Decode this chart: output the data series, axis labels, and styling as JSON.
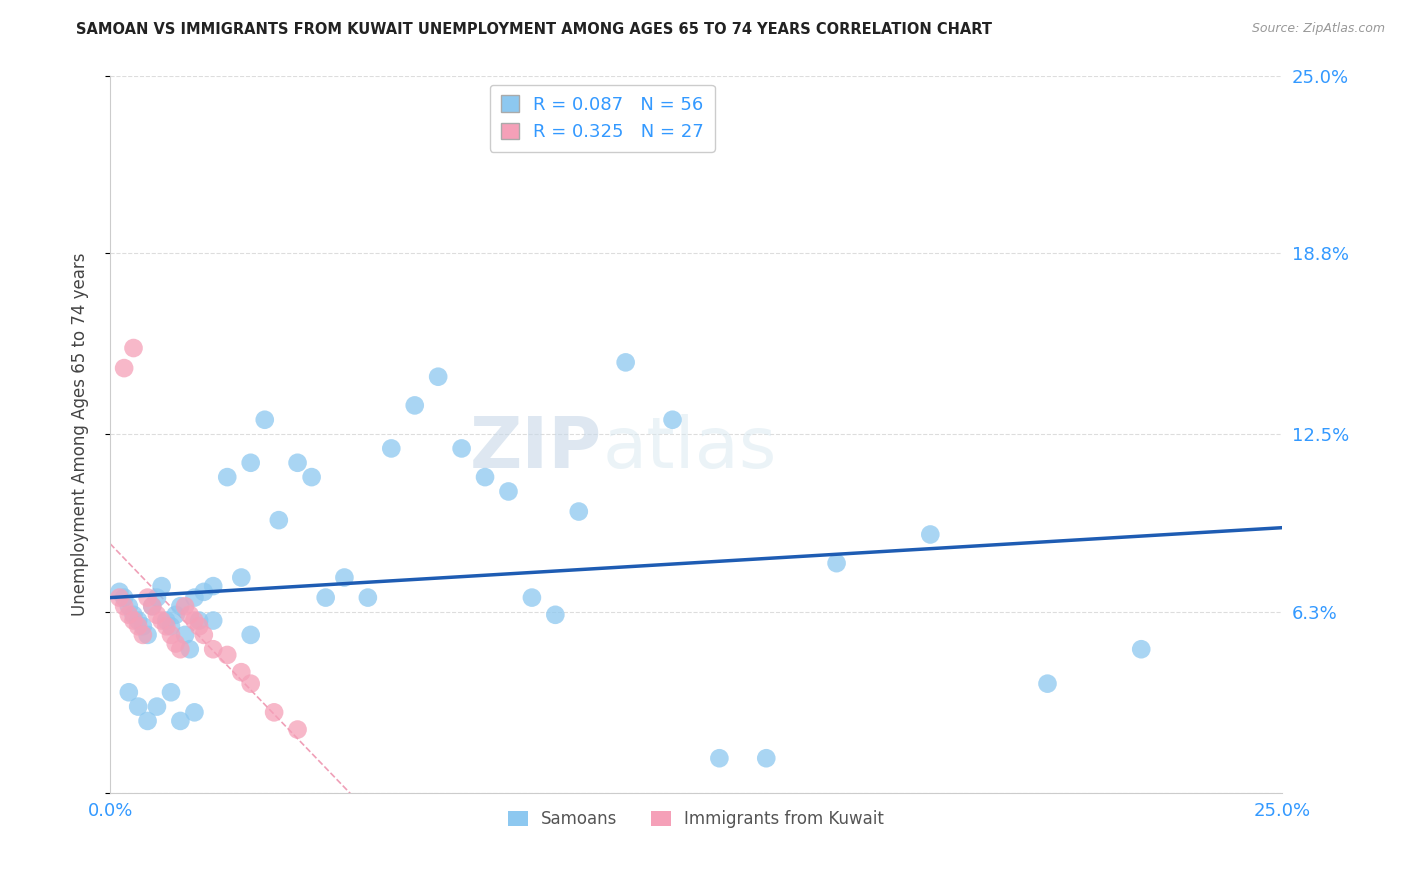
{
  "title": "SAMOAN VS IMMIGRANTS FROM KUWAIT UNEMPLOYMENT AMONG AGES 65 TO 74 YEARS CORRELATION CHART",
  "source": "Source: ZipAtlas.com",
  "ylabel": "Unemployment Among Ages 65 to 74 years",
  "xlim": [
    0.0,
    0.25
  ],
  "ylim": [
    0.0,
    0.25
  ],
  "blue_color": "#8DC8F0",
  "pink_color": "#F5A0B8",
  "trendline_blue_color": "#1E5CB3",
  "trendline_pink_color": "#E04070",
  "legend_label_blue": "Samoans",
  "legend_label_pink": "Immigrants from Kuwait",
  "legend_R_blue": "0.087",
  "legend_N_blue": "56",
  "legend_R_pink": "0.325",
  "legend_N_pink": "27",
  "watermark_zip": "ZIP",
  "watermark_atlas": "atlas",
  "samoans_x": [
    0.002,
    0.003,
    0.004,
    0.005,
    0.006,
    0.007,
    0.008,
    0.009,
    0.01,
    0.011,
    0.012,
    0.013,
    0.014,
    0.015,
    0.016,
    0.017,
    0.018,
    0.019,
    0.02,
    0.022,
    0.025,
    0.028,
    0.03,
    0.033,
    0.036,
    0.04,
    0.043,
    0.046,
    0.05,
    0.055,
    0.06,
    0.065,
    0.07,
    0.075,
    0.08,
    0.085,
    0.09,
    0.095,
    0.1,
    0.11,
    0.12,
    0.13,
    0.14,
    0.155,
    0.175,
    0.2,
    0.22,
    0.004,
    0.006,
    0.008,
    0.01,
    0.013,
    0.015,
    0.018,
    0.022,
    0.03
  ],
  "samoans_y": [
    0.07,
    0.068,
    0.065,
    0.062,
    0.06,
    0.058,
    0.055,
    0.065,
    0.068,
    0.072,
    0.06,
    0.058,
    0.062,
    0.065,
    0.055,
    0.05,
    0.068,
    0.06,
    0.07,
    0.072,
    0.11,
    0.075,
    0.115,
    0.13,
    0.095,
    0.115,
    0.11,
    0.068,
    0.075,
    0.068,
    0.12,
    0.135,
    0.145,
    0.12,
    0.11,
    0.105,
    0.068,
    0.062,
    0.098,
    0.15,
    0.13,
    0.012,
    0.012,
    0.08,
    0.09,
    0.038,
    0.05,
    0.035,
    0.03,
    0.025,
    0.03,
    0.035,
    0.025,
    0.028,
    0.06,
    0.055
  ],
  "kuwait_x": [
    0.002,
    0.003,
    0.004,
    0.005,
    0.006,
    0.007,
    0.008,
    0.009,
    0.01,
    0.011,
    0.012,
    0.013,
    0.014,
    0.015,
    0.016,
    0.017,
    0.018,
    0.019,
    0.02,
    0.022,
    0.025,
    0.028,
    0.03,
    0.035,
    0.04,
    0.005,
    0.003
  ],
  "kuwait_y": [
    0.068,
    0.065,
    0.062,
    0.06,
    0.058,
    0.055,
    0.068,
    0.065,
    0.062,
    0.06,
    0.058,
    0.055,
    0.052,
    0.05,
    0.065,
    0.062,
    0.06,
    0.058,
    0.055,
    0.05,
    0.048,
    0.042,
    0.038,
    0.028,
    0.022,
    0.155,
    0.148
  ]
}
